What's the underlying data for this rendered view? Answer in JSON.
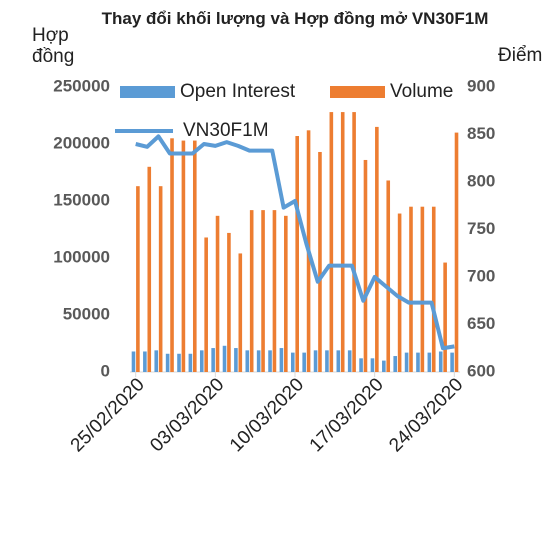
{
  "chart_data": {
    "type": "bar-line",
    "title": "Thay đổi khối lượng và Hợp đồng mở VN30F1M",
    "y_label": "Hợp đồng",
    "y2_label": "Điểm",
    "categories": [
      "25/02/2020",
      null,
      null,
      null,
      null,
      null,
      null,
      "03/03/2020",
      null,
      null,
      null,
      null,
      null,
      null,
      "10/03/2020",
      null,
      null,
      null,
      null,
      null,
      null,
      "17/03/2020",
      null,
      null,
      null,
      null,
      null,
      null,
      "24/03/2020"
    ],
    "series": [
      {
        "name": "Open Interest",
        "color": "#5b9bd5",
        "kind": "bar",
        "values": [
          18000,
          18000,
          19000,
          16000,
          16000,
          16000,
          19000,
          21000,
          23000,
          21000,
          19000,
          19000,
          19000,
          21000,
          17000,
          17000,
          19000,
          19000,
          19000,
          19000,
          12000,
          12000,
          10000,
          14000,
          17000,
          17000,
          17000,
          18000,
          17000
        ]
      },
      {
        "name": "Volume",
        "color": "#ed7d31",
        "kind": "bar",
        "values": [
          163000,
          180000,
          163000,
          205000,
          203000,
          203000,
          118000,
          137000,
          122000,
          104000,
          142000,
          142000,
          142000,
          137000,
          207000,
          212000,
          193000,
          228000,
          228000,
          228000,
          186000,
          215000,
          168000,
          139000,
          145000,
          145000,
          145000,
          96000,
          210000
        ]
      },
      {
        "name": "VN30F1M",
        "color": "#5b9bd5",
        "kind": "line",
        "axis": "y2",
        "values": [
          840,
          837,
          848,
          830,
          830,
          830,
          840,
          838,
          842,
          838,
          833,
          833,
          833,
          773,
          780,
          735,
          695,
          712,
          712,
          712,
          675,
          700,
          690,
          680,
          673,
          673,
          673,
          625,
          627
        ]
      }
    ],
    "ylim": [
      0,
      250000
    ],
    "yticks": [
      0,
      50000,
      100000,
      150000,
      200000,
      250000
    ],
    "y2lim": [
      600,
      900
    ],
    "y2ticks": [
      600,
      650,
      700,
      750,
      800,
      850,
      900
    ]
  }
}
